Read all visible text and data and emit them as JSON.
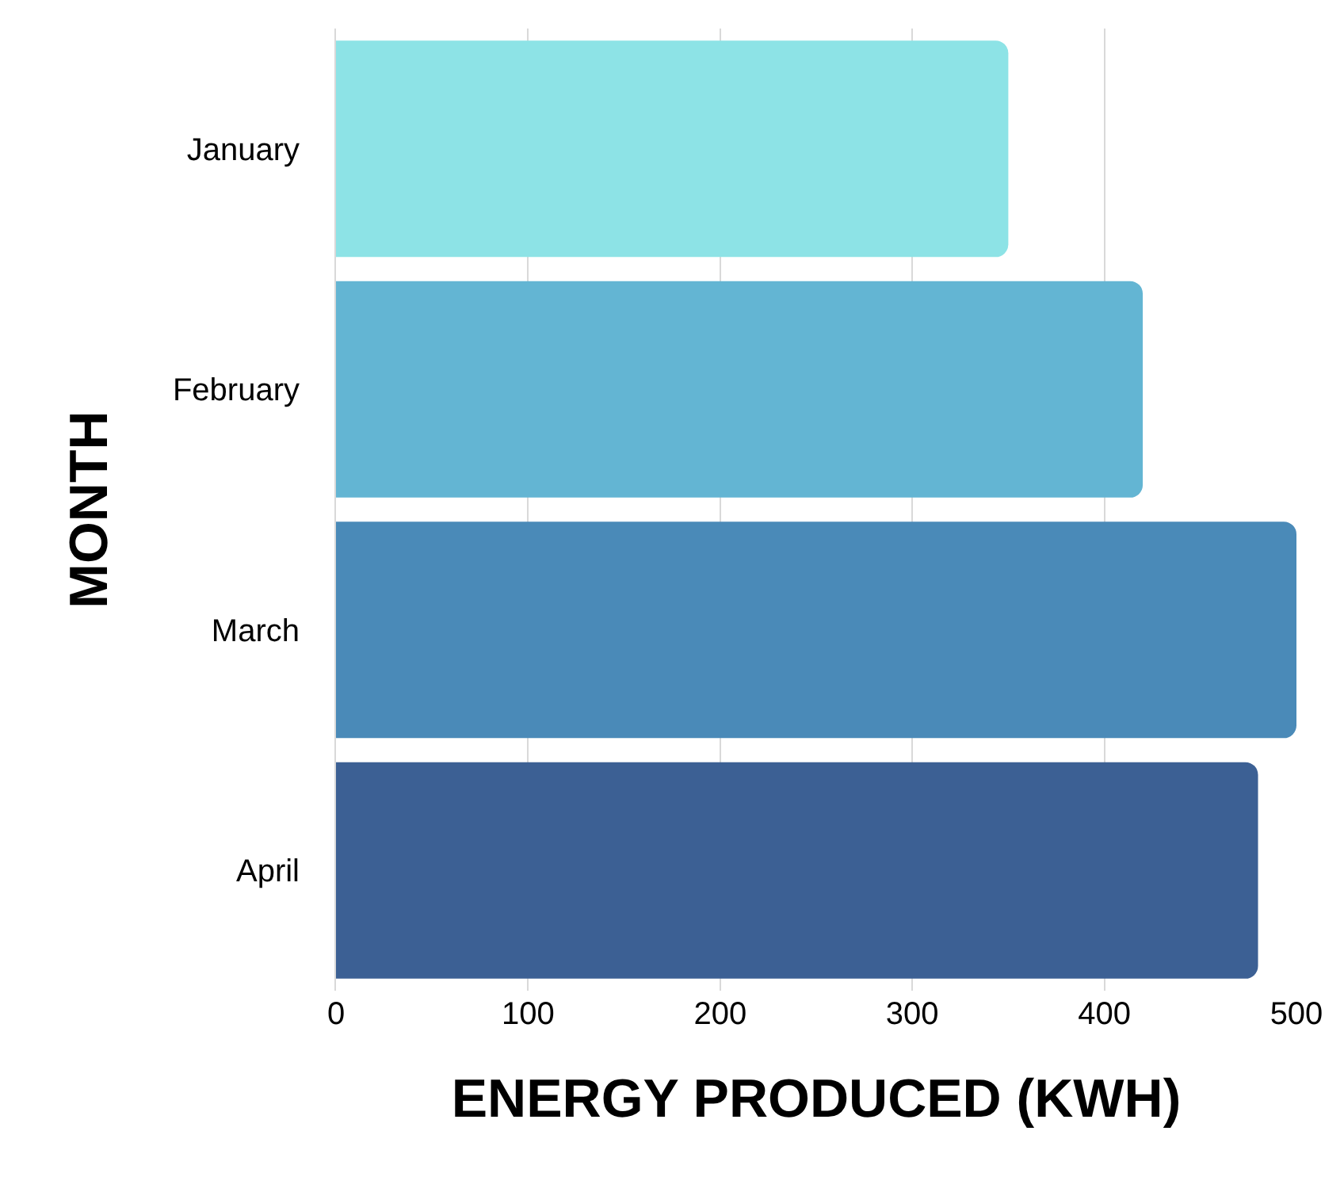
{
  "chart_data": {
    "type": "bar",
    "orientation": "horizontal",
    "xlabel": "ENERGY PRODUCED (KWH)",
    "ylabel": "MONTH",
    "categories": [
      "January",
      "February",
      "March",
      "April"
    ],
    "values": [
      350,
      420,
      500,
      480
    ],
    "colors": [
      "#8de3e6",
      "#63b5d3",
      "#4a8ab8",
      "#3c6094"
    ],
    "xlim": [
      0,
      500
    ],
    "xticks": [
      0,
      100,
      200,
      300,
      400,
      500
    ],
    "grid": "x"
  }
}
